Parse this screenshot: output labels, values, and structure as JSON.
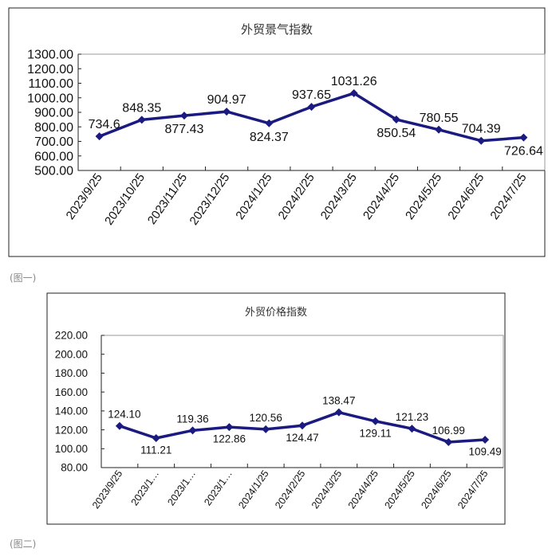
{
  "chart_data": [
    {
      "type": "line",
      "title": "外贸景气指数",
      "categories": [
        "2023/9/25",
        "2023/10/25",
        "2023/11/25",
        "2023/12/25",
        "2024/1/25",
        "2024/2/25",
        "2024/3/25",
        "2024/4/25",
        "2024/5/25",
        "2024/6/25",
        "2024/7/25"
      ],
      "values": [
        734.6,
        848.35,
        877.43,
        904.97,
        824.37,
        937.65,
        1031.26,
        850.54,
        780.55,
        704.39,
        726.64
      ],
      "data_labels": [
        "734.6",
        "848.35",
        "877.43",
        "904.97",
        "824.37",
        "937.65",
        "1031.26",
        "850.54",
        "780.55",
        "704.39",
        "726.64"
      ],
      "label_pos": [
        "above",
        "above",
        "below",
        "above",
        "below",
        "above",
        "above",
        "below",
        "above",
        "above",
        "below"
      ],
      "ylim": [
        500,
        1300
      ],
      "yticks": [
        "500.00",
        "600.00",
        "700.00",
        "800.00",
        "900.00",
        "1000.00",
        "1100.00",
        "1200.00",
        "1300.00"
      ],
      "grid": false,
      "line_color": "#1a1a80",
      "caption": "(图一)"
    },
    {
      "type": "line",
      "title": "外贸价格指数",
      "categories": [
        "2023/9/25",
        "2023/1…",
        "2023/1…",
        "2023/1…",
        "2024/1/25",
        "2024/2/25",
        "2024/3/25",
        "2024/4/25",
        "2024/5/25",
        "2024/6/25",
        "2024/7/25"
      ],
      "values": [
        124.1,
        111.21,
        119.36,
        122.86,
        120.56,
        124.47,
        138.47,
        129.11,
        121.23,
        106.99,
        109.49
      ],
      "data_labels": [
        "124.10",
        "111.21",
        "119.36",
        "122.86",
        "120.56",
        "124.47",
        "138.47",
        "129.11",
        "121.23",
        "106.99",
        "109.49"
      ],
      "label_pos": [
        "above",
        "below",
        "above",
        "below",
        "above",
        "below",
        "above",
        "below",
        "above",
        "above",
        "below"
      ],
      "ylim": [
        80,
        220
      ],
      "yticks": [
        "80.00",
        "100.00",
        "120.00",
        "140.00",
        "160.00",
        "180.00",
        "200.00",
        "220.00"
      ],
      "grid": false,
      "line_color": "#1a1a80",
      "caption": "(图二)"
    }
  ]
}
